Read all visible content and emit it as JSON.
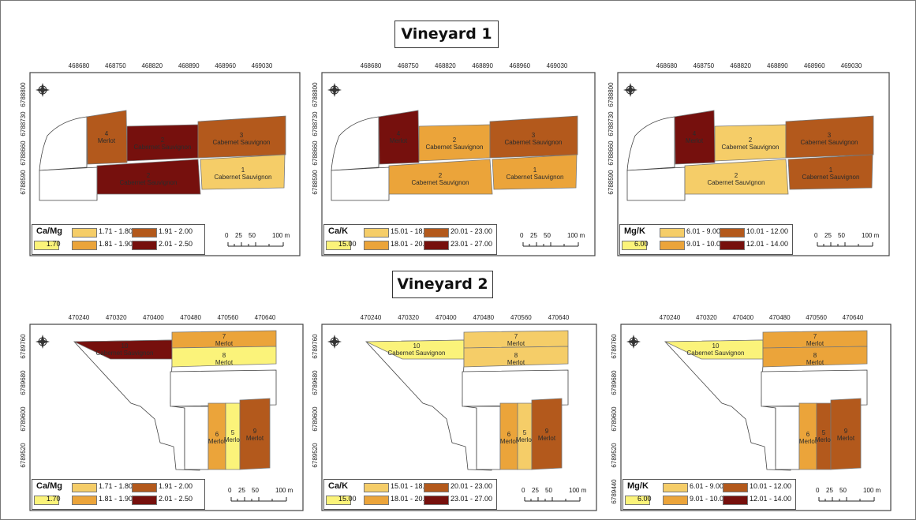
{
  "vineyards": [
    {
      "title": "Vineyard 1"
    },
    {
      "title": "Vineyard 2"
    }
  ],
  "legend_colors": [
    "#fbf37a",
    "#f5cd68",
    "#eba43a",
    "#b3591c",
    "#76100d"
  ],
  "panels": [
    {
      "legend": {
        "title": "Ca/Mg",
        "entries": [
          "1.70",
          "1.71 - 1.80",
          "1.81 - 1.90",
          "1.91 - 2.00",
          "2.01 - 2.50"
        ]
      },
      "x_ticks": [
        "468680",
        "468750",
        "468820",
        "468890",
        "468960",
        "469030"
      ],
      "y_ticks": [
        "6788800",
        "6788730",
        "6788660",
        "6788590"
      ],
      "scale": {
        "labels": [
          "0",
          "25",
          "50",
          "100 m"
        ]
      },
      "plots": [
        {
          "number": "4",
          "cultivar": "Merlot",
          "class": 3
        },
        {
          "number": "2",
          "cultivar": "Cabernet Sauvignon",
          "class": 4
        },
        {
          "number": "3",
          "cultivar": "Cabernet Sauvignon",
          "class": 3
        },
        {
          "number": "2",
          "cultivar": "Cabernet Sauvignon",
          "class": 4
        },
        {
          "number": "1",
          "cultivar": "Cabernet Sauvignon",
          "class": 1
        }
      ]
    },
    {
      "legend": {
        "title": "Ca/K",
        "entries": [
          "15.00",
          "15.01 - 18.00",
          "18.01 - 20.00",
          "20.01 - 23.00",
          "23.01 - 27.00"
        ]
      },
      "x_ticks": [
        "468680",
        "468750",
        "468820",
        "468890",
        "468960",
        "469030"
      ],
      "y_ticks": [
        "6788800",
        "6788730",
        "6788660",
        "6788590"
      ],
      "scale": {
        "labels": [
          "0",
          "25",
          "50",
          "100 m"
        ]
      },
      "plots": [
        {
          "number": "4",
          "cultivar": "Merlot",
          "class": 4
        },
        {
          "number": "2",
          "cultivar": "Cabernet Sauvignon",
          "class": 2
        },
        {
          "number": "3",
          "cultivar": "Cabernet Sauvignon",
          "class": 3
        },
        {
          "number": "2",
          "cultivar": "Cabernet Sauvignon",
          "class": 2
        },
        {
          "number": "1",
          "cultivar": "Cabernet Sauvignon",
          "class": 2
        }
      ]
    },
    {
      "legend": {
        "title": "Mg/K",
        "entries": [
          "6.00",
          "6.01 - 9.00",
          "9.01 - 10.00",
          "10.01 - 12.00",
          "12.01 - 14.00"
        ]
      },
      "x_ticks": [
        "468680",
        "468750",
        "468820",
        "468890",
        "468960",
        "469030"
      ],
      "y_ticks": [
        "6788800",
        "6788730",
        "6788660",
        "6788590"
      ],
      "scale": {
        "labels": [
          "0",
          "25",
          "50",
          "100 m"
        ]
      },
      "plots": [
        {
          "number": "4",
          "cultivar": "Merlot",
          "class": 4
        },
        {
          "number": "2",
          "cultivar": "Cabernet Sauvignon",
          "class": 1
        },
        {
          "number": "3",
          "cultivar": "Cabernet Sauvignon",
          "class": 3
        },
        {
          "number": "2",
          "cultivar": "Cabernet Sauvignon",
          "class": 1
        },
        {
          "number": "1",
          "cultivar": "Cabernet Sauvignon",
          "class": 3
        }
      ]
    },
    {
      "legend": {
        "title": "Ca/Mg",
        "entries": [
          "1.70",
          "1.71 - 1.80",
          "1.81 - 1.90",
          "1.91 - 2.00",
          "2.01 - 2.50"
        ]
      },
      "x_ticks": [
        "470240",
        "470320",
        "470400",
        "470480",
        "470560",
        "470640"
      ],
      "y_ticks": [
        "6789760",
        "6789680",
        "6789600",
        "6789520"
      ],
      "scale": {
        "labels": [
          "0",
          "25",
          "50",
          "100 m"
        ]
      },
      "plots": [
        {
          "number": "10",
          "cultivar": "Cabernet Sauvignon",
          "class": 4
        },
        {
          "number": "7",
          "cultivar": "Merlot",
          "class": 2
        },
        {
          "number": "8",
          "cultivar": "Merlot",
          "class": 0
        },
        {
          "number": "6",
          "cultivar": "Merlot",
          "class": 2
        },
        {
          "number": "5",
          "cultivar": "Merlot",
          "class": 0
        },
        {
          "number": "9",
          "cultivar": "Merlot",
          "class": 3
        }
      ]
    },
    {
      "legend": {
        "title": "Ca/K",
        "entries": [
          "15.00",
          "15.01 - 18.00",
          "18.01 - 20.00",
          "20.01 - 23.00",
          "23.01 - 27.00"
        ]
      },
      "x_ticks": [
        "470240",
        "470320",
        "470400",
        "470480",
        "470560",
        "470640"
      ],
      "y_ticks": [
        "6789760",
        "6789680",
        "6789600",
        "6789520"
      ],
      "scale": {
        "labels": [
          "0",
          "25",
          "50",
          "100 m"
        ]
      },
      "plots": [
        {
          "number": "10",
          "cultivar": "Cabernet Sauvignon",
          "class": 0
        },
        {
          "number": "7",
          "cultivar": "Merlot",
          "class": 1
        },
        {
          "number": "8",
          "cultivar": "Merlot",
          "class": 1
        },
        {
          "number": "6",
          "cultivar": "Merlot",
          "class": 2
        },
        {
          "number": "5",
          "cultivar": "Merlot",
          "class": 1
        },
        {
          "number": "9",
          "cultivar": "Merlot",
          "class": 3
        }
      ]
    },
    {
      "legend": {
        "title": "Mg/K",
        "entries": [
          "6.00",
          "6.01 - 9.00",
          "9.01 - 10.00",
          "10.01 - 12.00",
          "12.01 - 14.00"
        ]
      },
      "x_ticks": [
        "470240",
        "470320",
        "470400",
        "470480",
        "470560",
        "470640"
      ],
      "y_ticks": [
        "6789760",
        "6789680",
        "6789600",
        "6789520",
        "6789440"
      ],
      "scale": {
        "labels": [
          "0",
          "25",
          "50",
          "100 m"
        ]
      },
      "plots": [
        {
          "number": "10",
          "cultivar": "Cabernet Sauvignon",
          "class": 0
        },
        {
          "number": "7",
          "cultivar": "Merlot",
          "class": 2
        },
        {
          "number": "8",
          "cultivar": "Merlot",
          "class": 2
        },
        {
          "number": "6",
          "cultivar": "Merlot",
          "class": 2
        },
        {
          "number": "5",
          "cultivar": "Merlot",
          "class": 3
        },
        {
          "number": "9",
          "cultivar": "Merlot",
          "class": 3
        }
      ]
    }
  ]
}
